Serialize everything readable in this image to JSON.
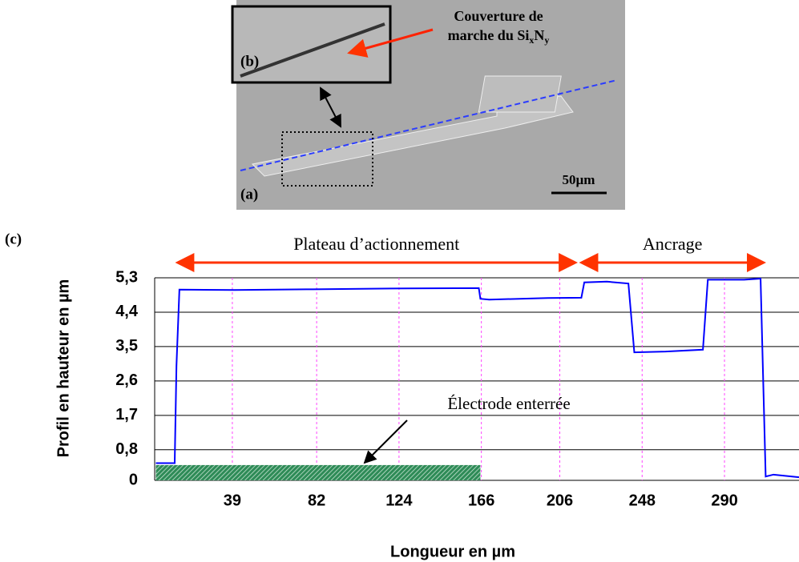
{
  "chart_data": {
    "type": "line",
    "figure_labels": {
      "a": "(a)",
      "b": "(b)",
      "c": "(c)"
    },
    "image_annotations": {
      "caption_line1": "Couverture de",
      "caption_line2": "marche du Si",
      "sub1": "x",
      "mid": "N",
      "sub2": "y",
      "scale_bar": "50µm"
    },
    "x_label": "Longueur en µm",
    "y_label": "Profil en hauteur en µm",
    "xlim": [
      0,
      328
    ],
    "ylim": [
      0,
      5.3
    ],
    "xticks": [
      39,
      82,
      124,
      166,
      206,
      248,
      290
    ],
    "yticks": [
      0,
      {
        "value": 0.8,
        "label": "0,8"
      },
      {
        "value": 1.7,
        "label": "1,7"
      },
      {
        "value": 2.6,
        "label": "2,6"
      },
      {
        "value": 3.5,
        "label": "3,5"
      },
      {
        "value": 4.4,
        "label": "4,4"
      },
      {
        "value": 5.3,
        "label": "5,3"
      }
    ],
    "grid": true,
    "series": [
      {
        "color": "#0000ff",
        "x": [
          0,
          9.6,
          10.5,
          12,
          40,
          80,
          120,
          164.7,
          165.5,
          170,
          200,
          217,
          218.5,
          230,
          241,
          244,
          260,
          279,
          281.5,
          300,
          308.4,
          311,
          315,
          328
        ],
        "values": [
          0.45,
          0.45,
          3.0,
          4.99,
          4.98,
          5.0,
          5.02,
          5.03,
          4.75,
          4.73,
          4.77,
          4.78,
          5.18,
          5.2,
          5.15,
          3.35,
          3.37,
          3.42,
          5.25,
          5.25,
          5.28,
          0.1,
          0.15,
          0.08
        ]
      }
    ],
    "spans": [
      {
        "label": "Plateau d’actionnement",
        "x": [
          11,
          214
        ]
      },
      {
        "label": "Ancrage",
        "x": [
          217,
          310
        ]
      }
    ],
    "electrode": {
      "label": "Électrode enterrée",
      "x": [
        0,
        165.5
      ],
      "height": 0.4
    }
  }
}
